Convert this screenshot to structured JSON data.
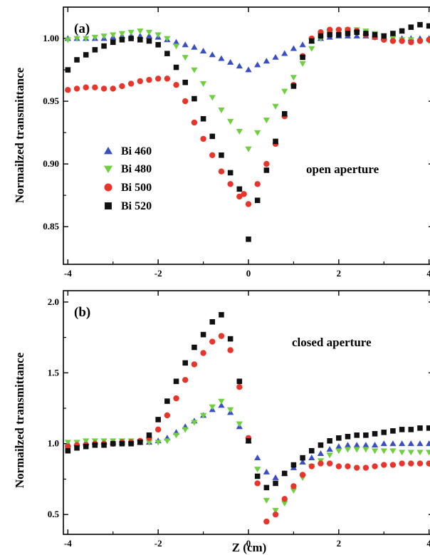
{
  "figure": {
    "xlabel": "Z (cm)"
  },
  "chart_data": [
    {
      "type": "scatter",
      "panel_label": "(a)",
      "ylabel": "Normailzed transmittance",
      "annotation": "open aperture",
      "xlim": [
        -4.1,
        4.1
      ],
      "ylim": [
        0.82,
        1.025
      ],
      "xticks": [
        -4,
        -2,
        0,
        2,
        4
      ],
      "yticks": [
        0.85,
        0.9,
        0.95,
        1.0
      ],
      "xtick_labels": [
        "-4",
        "-2",
        "0",
        "2",
        "4"
      ],
      "ytick_labels": [
        "0.85",
        "0.90",
        "0.95",
        "1.00"
      ],
      "legend_position": "left-middle",
      "series": [
        {
          "name": "Bi 460",
          "color": "#3b4fc4",
          "marker": "triangle-up",
          "x": [
            -4.0,
            -3.8,
            -3.6,
            -3.4,
            -3.2,
            -3.0,
            -2.8,
            -2.6,
            -2.4,
            -2.2,
            -2.0,
            -1.8,
            -1.6,
            -1.4,
            -1.2,
            -1.0,
            -0.8,
            -0.6,
            -0.4,
            -0.2,
            0.0,
            0.2,
            0.4,
            0.6,
            0.8,
            1.0,
            1.2,
            1.4,
            1.6,
            1.8,
            2.0,
            2.2,
            2.4,
            2.6,
            2.8,
            3.0,
            3.2,
            3.4,
            3.6,
            3.8,
            4.0
          ],
          "y": [
            1.0,
            1.0,
            1.0,
            1.0,
            1.0,
            1.001,
            1.002,
            1.002,
            1.002,
            1.002,
            1.001,
            0.999,
            0.997,
            0.995,
            0.993,
            0.99,
            0.987,
            0.984,
            0.981,
            0.978,
            0.975,
            0.979,
            0.982,
            0.985,
            0.988,
            0.992,
            0.995,
            0.998,
            1.0,
            1.001,
            1.002,
            1.002,
            1.002,
            1.002,
            1.001,
            1.001,
            1.0,
            1.0,
            1.0,
            1.0,
            1.0
          ]
        },
        {
          "name": "Bi 480",
          "color": "#6fcf3f",
          "marker": "triangle-down",
          "x": [
            -4.0,
            -3.8,
            -3.6,
            -3.4,
            -3.2,
            -3.0,
            -2.8,
            -2.6,
            -2.4,
            -2.2,
            -2.0,
            -1.8,
            -1.6,
            -1.4,
            -1.2,
            -1.0,
            -0.8,
            -0.6,
            -0.4,
            -0.2,
            0.0,
            0.2,
            0.4,
            0.6,
            0.8,
            1.0,
            1.2,
            1.4,
            1.6,
            1.8,
            2.0,
            2.2,
            2.4,
            2.6,
            2.8,
            3.0,
            3.2,
            3.4,
            3.6,
            3.8,
            4.0
          ],
          "y": [
            0.999,
            1.0,
            1.0,
            1.001,
            1.002,
            1.003,
            1.004,
            1.005,
            1.006,
            1.005,
            1.003,
            1.0,
            0.994,
            0.985,
            0.975,
            0.964,
            0.953,
            0.943,
            0.934,
            0.926,
            0.912,
            0.925,
            0.935,
            0.946,
            0.958,
            0.969,
            0.98,
            0.992,
            1.0,
            1.004,
            1.006,
            1.007,
            1.007,
            1.006,
            1.004,
            1.002,
            1.0,
            0.999,
            0.999,
            0.998,
            0.998
          ]
        },
        {
          "name": "Bi 500",
          "color": "#e8352b",
          "marker": "circle",
          "x": [
            -4.0,
            -3.8,
            -3.6,
            -3.4,
            -3.2,
            -3.0,
            -2.8,
            -2.6,
            -2.4,
            -2.2,
            -2.0,
            -1.8,
            -1.6,
            -1.4,
            -1.2,
            -1.0,
            -0.8,
            -0.6,
            -0.4,
            -0.2,
            -0.1,
            0.0,
            0.2,
            0.4,
            0.6,
            0.8,
            1.0,
            1.2,
            1.4,
            1.6,
            1.8,
            2.0,
            2.2,
            2.4,
            2.6,
            2.8,
            3.0,
            3.2,
            3.4,
            3.6,
            3.8,
            4.0
          ],
          "y": [
            0.959,
            0.96,
            0.961,
            0.961,
            0.96,
            0.96,
            0.962,
            0.964,
            0.966,
            0.967,
            0.968,
            0.968,
            0.963,
            0.95,
            0.933,
            0.92,
            0.907,
            0.894,
            0.884,
            0.874,
            0.876,
            0.868,
            0.884,
            0.9,
            0.916,
            0.938,
            0.963,
            0.986,
            1.0,
            1.005,
            1.007,
            1.007,
            1.007,
            1.006,
            1.003,
            1.001,
            0.999,
            0.998,
            0.998,
            0.997,
            0.998,
            0.999
          ]
        },
        {
          "name": "Bi 520",
          "color": "#111111",
          "marker": "square",
          "x": [
            -4.0,
            -3.8,
            -3.6,
            -3.4,
            -3.2,
            -3.0,
            -2.8,
            -2.6,
            -2.4,
            -2.2,
            -2.0,
            -1.8,
            -1.6,
            -1.4,
            -1.2,
            -1.0,
            -0.8,
            -0.6,
            -0.4,
            -0.2,
            0.0,
            0.2,
            0.4,
            0.6,
            0.8,
            1.0,
            1.2,
            1.4,
            1.6,
            1.8,
            2.0,
            2.2,
            2.4,
            2.6,
            2.8,
            3.0,
            3.2,
            3.4,
            3.6,
            3.8,
            4.0
          ],
          "y": [
            0.975,
            0.983,
            0.987,
            0.991,
            0.994,
            0.997,
            0.999,
            1.0,
            0.999,
            0.998,
            0.995,
            0.988,
            0.977,
            0.965,
            0.952,
            0.936,
            0.922,
            0.907,
            0.893,
            0.88,
            0.84,
            0.871,
            0.895,
            0.918,
            0.94,
            0.962,
            0.985,
            0.998,
            1.002,
            1.003,
            1.003,
            1.004,
            1.005,
            1.004,
            1.003,
            1.002,
            1.004,
            1.006,
            1.009,
            1.011,
            1.01
          ]
        }
      ]
    },
    {
      "type": "scatter",
      "panel_label": "(b)",
      "ylabel": "Normailzed transmittance",
      "annotation": "closed aperture",
      "xlabel": "Z (cm)",
      "xlim": [
        -4.1,
        4.1
      ],
      "ylim": [
        0.36,
        2.08
      ],
      "xticks": [
        -4,
        -2,
        0,
        2,
        4
      ],
      "yticks": [
        0.5,
        1.0,
        1.5,
        2.0
      ],
      "xtick_labels": [
        "-4",
        "-2",
        "0",
        "2",
        "4"
      ],
      "ytick_labels": [
        "0.5",
        "1.0",
        "1.5",
        "2.0"
      ],
      "series": [
        {
          "name": "Bi 460",
          "color": "#3b4fc4",
          "marker": "triangle-up",
          "x": [
            -4.0,
            -3.8,
            -3.6,
            -3.4,
            -3.2,
            -3.0,
            -2.8,
            -2.6,
            -2.4,
            -2.2,
            -2.0,
            -1.8,
            -1.6,
            -1.4,
            -1.2,
            -1.0,
            -0.8,
            -0.6,
            -0.4,
            -0.2,
            0.0,
            0.2,
            0.4,
            0.6,
            0.8,
            1.0,
            1.2,
            1.4,
            1.6,
            1.8,
            2.0,
            2.2,
            2.4,
            2.6,
            2.8,
            3.0,
            3.2,
            3.4,
            3.6,
            3.8,
            4.0
          ],
          "y": [
            1.0,
            1.0,
            1.01,
            1.01,
            1.01,
            1.01,
            1.01,
            1.01,
            1.01,
            1.01,
            1.02,
            1.04,
            1.08,
            1.12,
            1.16,
            1.2,
            1.24,
            1.27,
            1.22,
            1.12,
            1.02,
            0.9,
            0.8,
            0.76,
            0.79,
            0.83,
            0.87,
            0.9,
            0.93,
            0.96,
            0.98,
            0.99,
            0.99,
            0.99,
            0.99,
            1.0,
            1.0,
            1.0,
            1.0,
            1.0,
            1.0
          ]
        },
        {
          "name": "Bi 480",
          "color": "#6fcf3f",
          "marker": "triangle-down",
          "x": [
            -4.0,
            -3.8,
            -3.6,
            -3.4,
            -3.2,
            -3.0,
            -2.8,
            -2.6,
            -2.4,
            -2.2,
            -2.0,
            -1.8,
            -1.6,
            -1.4,
            -1.2,
            -1.0,
            -0.8,
            -0.6,
            -0.4,
            -0.2,
            0.0,
            0.2,
            0.4,
            0.6,
            0.8,
            1.0,
            1.2,
            1.4,
            1.6,
            1.8,
            2.0,
            2.2,
            2.4,
            2.6,
            2.8,
            3.0,
            3.2,
            3.4,
            3.6,
            3.8,
            4.0
          ],
          "y": [
            1.01,
            1.01,
            1.02,
            1.02,
            1.02,
            1.02,
            1.02,
            1.02,
            1.01,
            1.01,
            1.01,
            1.02,
            1.06,
            1.1,
            1.15,
            1.2,
            1.26,
            1.3,
            1.24,
            1.14,
            1.03,
            0.82,
            0.6,
            0.53,
            0.58,
            0.67,
            0.76,
            0.84,
            0.88,
            0.92,
            0.95,
            0.96,
            0.96,
            0.96,
            0.95,
            0.95,
            0.95,
            0.94,
            0.94,
            0.94,
            0.94
          ]
        },
        {
          "name": "Bi 500",
          "color": "#e8352b",
          "marker": "circle",
          "x": [
            -4.0,
            -3.8,
            -3.6,
            -3.4,
            -3.2,
            -3.0,
            -2.8,
            -2.6,
            -2.4,
            -2.2,
            -2.0,
            -1.8,
            -1.6,
            -1.4,
            -1.2,
            -1.0,
            -0.8,
            -0.6,
            -0.4,
            -0.2,
            0.0,
            0.2,
            0.4,
            0.6,
            0.8,
            1.0,
            1.2,
            1.4,
            1.6,
            1.8,
            2.0,
            2.2,
            2.4,
            2.6,
            2.8,
            3.0,
            3.2,
            3.4,
            3.6,
            3.8,
            4.0
          ],
          "y": [
            0.98,
            0.99,
            0.99,
            1.0,
            1.0,
            1.0,
            1.01,
            1.01,
            1.02,
            1.04,
            1.1,
            1.2,
            1.32,
            1.45,
            1.56,
            1.64,
            1.72,
            1.76,
            1.66,
            1.4,
            1.04,
            0.72,
            0.45,
            0.5,
            0.61,
            0.7,
            0.78,
            0.84,
            0.86,
            0.86,
            0.84,
            0.84,
            0.83,
            0.83,
            0.84,
            0.85,
            0.85,
            0.86,
            0.86,
            0.86,
            0.86
          ]
        },
        {
          "name": "Bi 520",
          "color": "#111111",
          "marker": "square",
          "x": [
            -4.0,
            -3.8,
            -3.6,
            -3.4,
            -3.2,
            -3.0,
            -2.8,
            -2.6,
            -2.4,
            -2.2,
            -2.0,
            -1.8,
            -1.6,
            -1.4,
            -1.2,
            -1.0,
            -0.8,
            -0.6,
            -0.4,
            -0.2,
            0.0,
            0.2,
            0.4,
            0.6,
            0.8,
            1.0,
            1.2,
            1.4,
            1.6,
            1.8,
            2.0,
            2.2,
            2.4,
            2.6,
            2.8,
            3.0,
            3.2,
            3.4,
            3.6,
            3.8,
            4.0
          ],
          "y": [
            0.95,
            0.97,
            0.98,
            0.99,
            0.99,
            1.0,
            1.0,
            1.0,
            1.01,
            1.06,
            1.17,
            1.3,
            1.44,
            1.57,
            1.68,
            1.77,
            1.86,
            1.91,
            1.74,
            1.44,
            1.02,
            0.77,
            0.69,
            0.72,
            0.79,
            0.85,
            0.9,
            0.95,
            0.99,
            1.02,
            1.04,
            1.05,
            1.06,
            1.06,
            1.07,
            1.08,
            1.09,
            1.1,
            1.1,
            1.11,
            1.11
          ]
        }
      ]
    }
  ]
}
